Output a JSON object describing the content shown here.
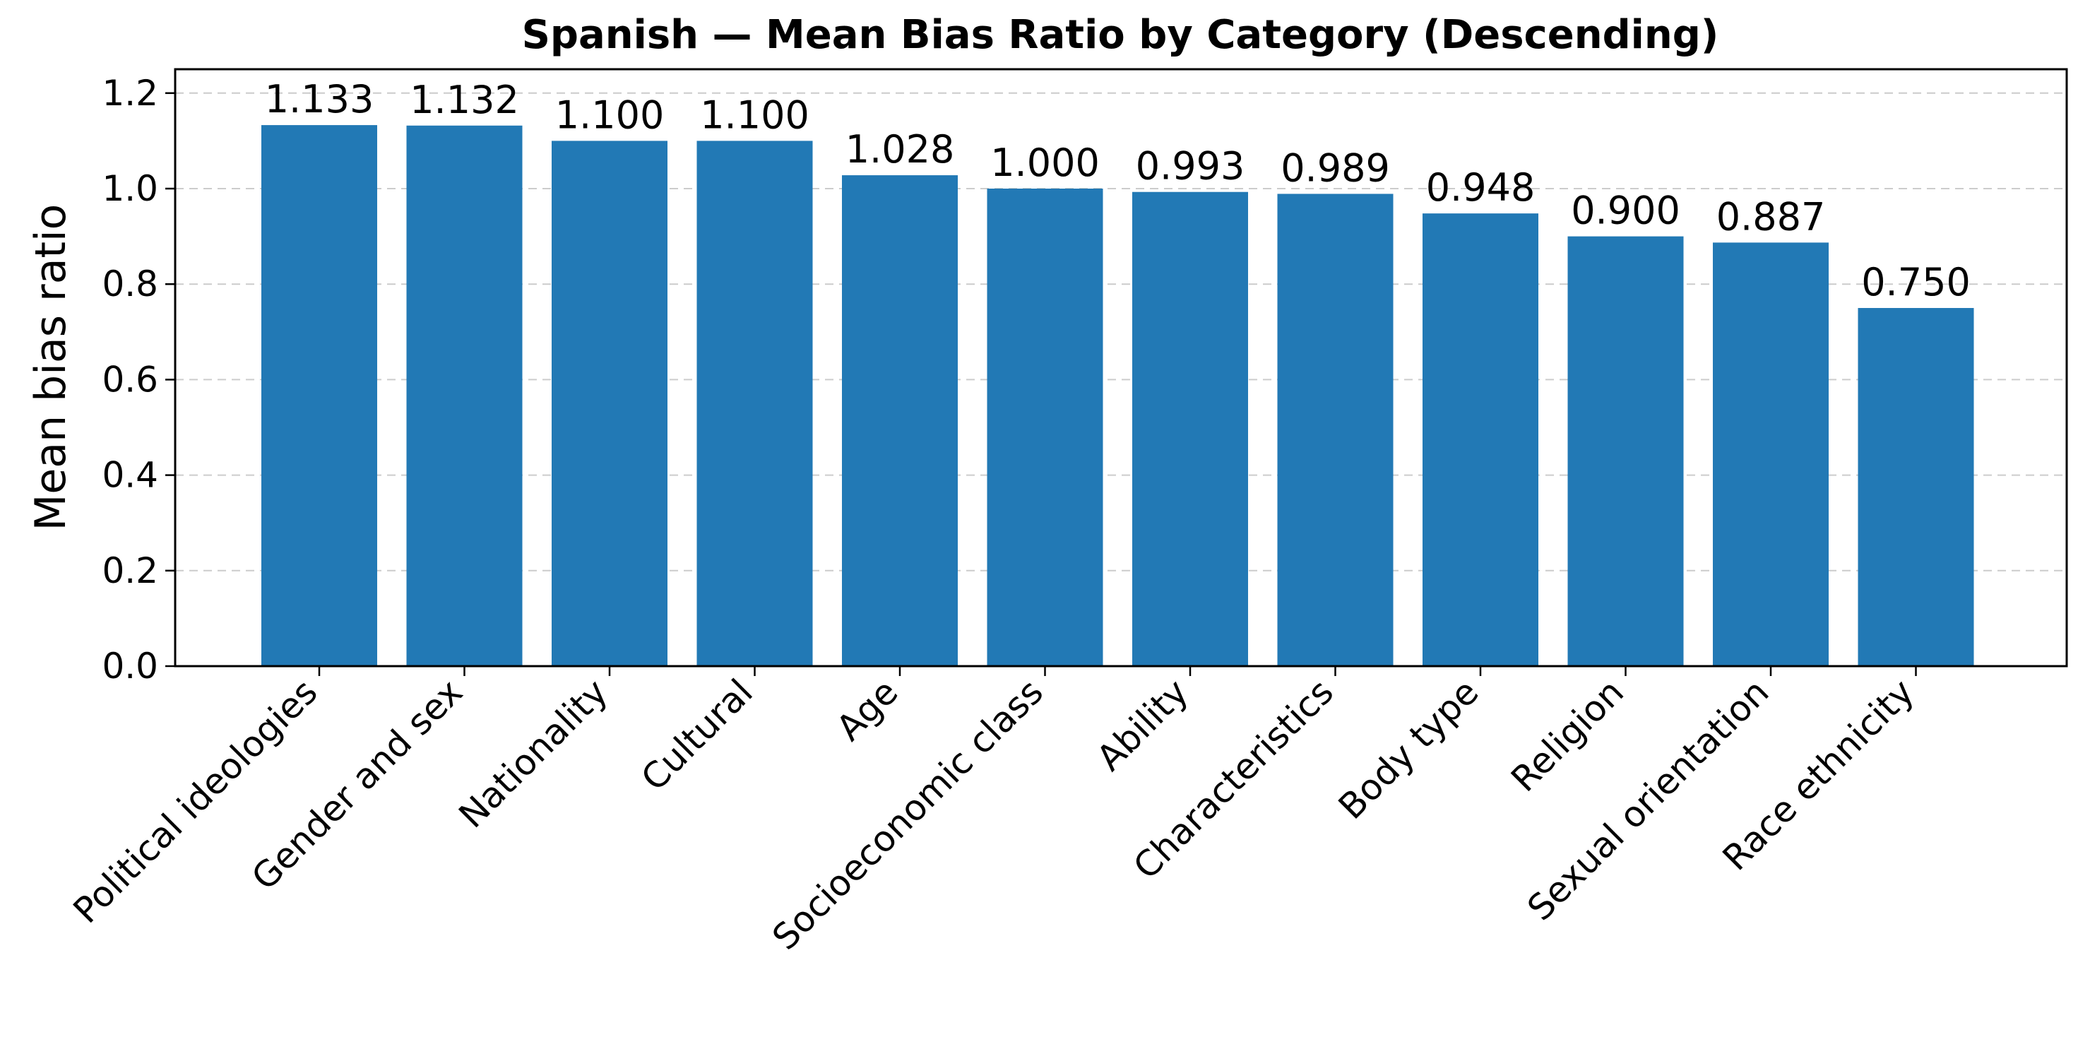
{
  "chart_data": {
    "type": "bar",
    "title": "Spanish — Mean Bias Ratio by Category (Descending)",
    "xlabel": "",
    "ylabel": "Mean bias ratio",
    "ylim": [
      0,
      1.25
    ],
    "yticks": [
      "0.0",
      "0.2",
      "0.4",
      "0.6",
      "0.8",
      "1.0",
      "1.2"
    ],
    "grid": "y-dashed",
    "bar_color": "#2279b5",
    "categories": [
      "Political ideologies",
      "Gender and sex",
      "Nationality",
      "Cultural",
      "Age",
      "Socioeconomic class",
      "Ability",
      "Characteristics",
      "Body type",
      "Religion",
      "Sexual orientation",
      "Race ethnicity"
    ],
    "values": [
      1.133,
      1.132,
      1.1,
      1.1,
      1.028,
      1.0,
      0.993,
      0.989,
      0.948,
      0.9,
      0.887,
      0.75
    ],
    "data_labels": [
      "1.133",
      "1.132",
      "1.100",
      "1.100",
      "1.028",
      "1.000",
      "0.993",
      "0.989",
      "0.948",
      "0.900",
      "0.887",
      "0.750"
    ]
  }
}
